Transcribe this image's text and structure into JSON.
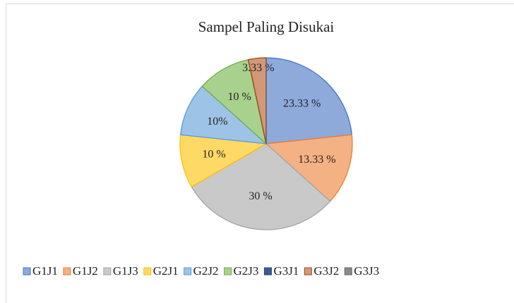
{
  "chart_data": {
    "type": "pie",
    "title": "Sampel Paling Disukai",
    "categories": [
      "G1J1",
      "G1J2",
      "G1J3",
      "G2J1",
      "G2J2",
      "G2J3",
      "G3J1",
      "G3J2",
      "G3J3"
    ],
    "values": [
      23.33,
      13.33,
      30,
      10,
      10,
      10,
      0,
      3.33,
      0
    ],
    "value_labels": [
      "23.33 %",
      "13.33 %",
      "30 %",
      "10 %",
      "10%",
      "10 %",
      null,
      "3.33 %",
      null
    ],
    "colors": [
      "#8eaadb",
      "#f4b183",
      "#c9c9c9",
      "#ffd966",
      "#9dc3e6",
      "#a9d18e",
      "#3a5a94",
      "#d39878",
      "#8a8a8a"
    ],
    "edge_colors": [
      "#4472c4",
      "#ed7d31",
      "#a5a5a5",
      "#ffc000",
      "#5b9bd5",
      "#70ad47",
      "#264478",
      "#9e480e",
      "#636363"
    ],
    "legend": "bottom"
  }
}
